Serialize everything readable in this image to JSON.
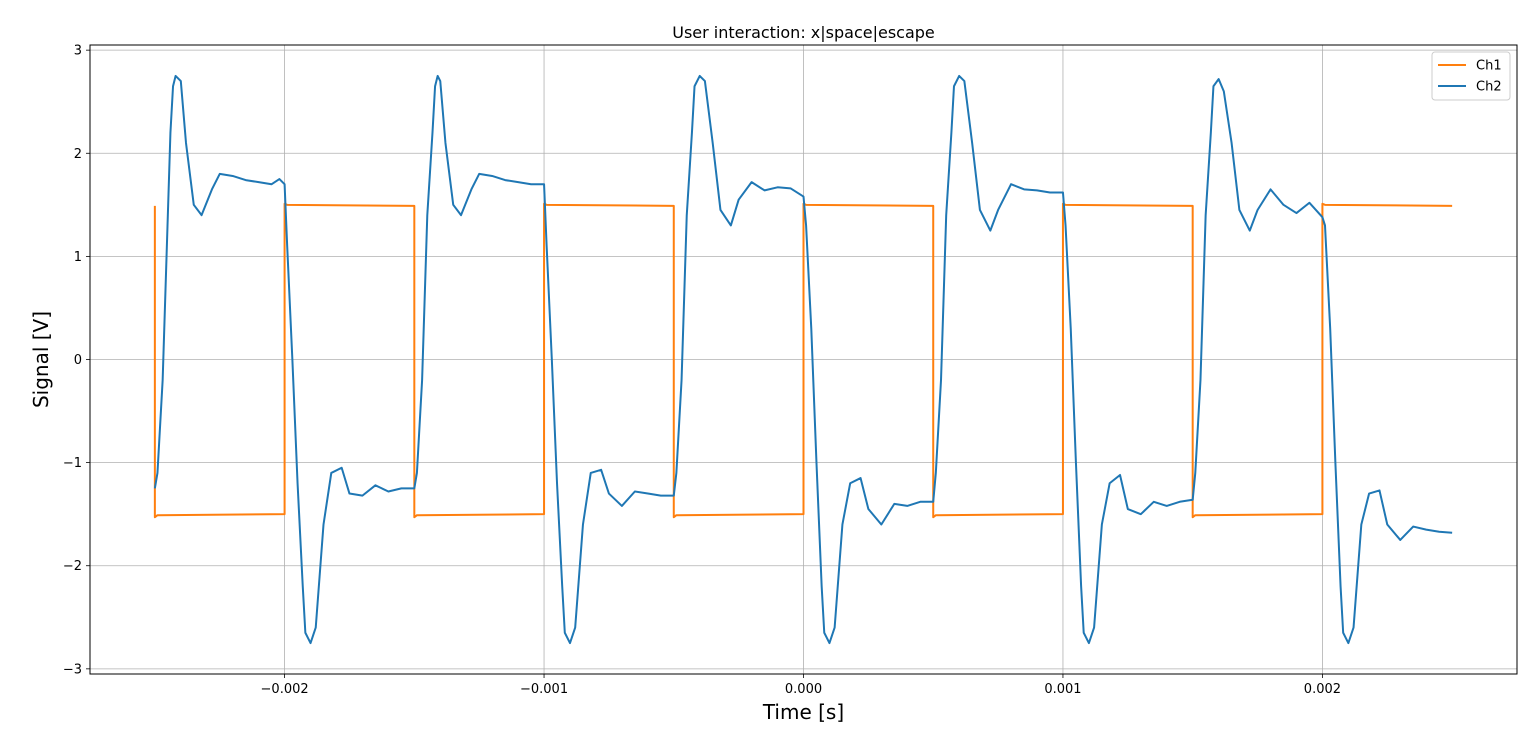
{
  "chart_data": {
    "type": "line",
    "title": "User interaction: x|space|escape",
    "xlabel": "Time [s]",
    "ylabel": "Signal [V]",
    "xlim": [
      -0.00275,
      0.00275
    ],
    "ylim": [
      -3.05,
      3.05
    ],
    "xticks": [
      -0.002,
      -0.001,
      0.0,
      0.001,
      0.002
    ],
    "xtick_labels": [
      "−0.002",
      "−0.001",
      "0.000",
      "0.001",
      "0.002"
    ],
    "yticks": [
      -3,
      -2,
      -1,
      0,
      1,
      2,
      3
    ],
    "ytick_labels": [
      "−3",
      "−2",
      "−1",
      "0",
      "1",
      "2",
      "3"
    ],
    "grid": true,
    "legend_position": "top-right",
    "square_wave": {
      "amplitude": 1.5,
      "period_s": 0.001,
      "t_start": -0.0025,
      "t_end": 0.0025,
      "edges_s": [
        -0.002,
        -0.0015,
        -0.001,
        -0.0005,
        0.0,
        0.0005,
        0.001,
        0.0015,
        0.002
      ],
      "initial_level": 1.5
    },
    "series": [
      {
        "name": "Ch1",
        "color": "#ff7f0e",
        "description": "square wave ±1.5 V",
        "x": [
          -0.0025,
          -0.0025,
          -0.00249,
          -0.002,
          -0.002,
          -0.00199,
          -0.0015,
          -0.0015,
          -0.00149,
          -0.001,
          -0.001,
          -0.00099,
          -0.0005,
          -0.0005,
          -0.00049,
          0.0,
          0.0,
          1e-05,
          0.0005,
          0.0005,
          0.00051,
          0.001,
          0.001,
          0.00101,
          0.0015,
          0.0015,
          0.00151,
          0.002,
          0.002,
          0.00201,
          0.0025
        ],
        "y": [
          1.49,
          -1.53,
          -1.51,
          -1.5,
          1.51,
          1.5,
          1.49,
          -1.53,
          -1.51,
          -1.5,
          1.51,
          1.5,
          1.49,
          -1.53,
          -1.51,
          -1.5,
          1.51,
          1.5,
          1.49,
          -1.53,
          -1.51,
          -1.5,
          1.51,
          1.5,
          1.49,
          -1.53,
          -1.51,
          -1.5,
          1.51,
          1.5,
          1.49
        ]
      },
      {
        "name": "Ch2",
        "color": "#1f77b4",
        "description": "ringing response to square-wave edges",
        "x": [
          -0.0025,
          -0.00249,
          -0.00247,
          -0.00245,
          -0.00244,
          -0.00243,
          -0.00242,
          -0.0024,
          -0.00238,
          -0.00235,
          -0.00232,
          -0.00228,
          -0.00225,
          -0.0022,
          -0.00215,
          -0.0021,
          -0.00205,
          -0.00202,
          -0.002,
          -0.00199,
          -0.00197,
          -0.00195,
          -0.00193,
          -0.00192,
          -0.0019,
          -0.00188,
          -0.00185,
          -0.00182,
          -0.00178,
          -0.00175,
          -0.0017,
          -0.00165,
          -0.0016,
          -0.00155,
          -0.0015,
          -0.00149,
          -0.00147,
          -0.00145,
          -0.00143,
          -0.00142,
          -0.00141,
          -0.0014,
          -0.00138,
          -0.00135,
          -0.00132,
          -0.00128,
          -0.00125,
          -0.0012,
          -0.00115,
          -0.0011,
          -0.00105,
          -0.001,
          -0.00099,
          -0.00097,
          -0.00095,
          -0.00093,
          -0.00092,
          -0.0009,
          -0.00088,
          -0.00085,
          -0.00082,
          -0.00078,
          -0.00075,
          -0.0007,
          -0.00065,
          -0.0006,
          -0.00055,
          -0.0005,
          -0.00049,
          -0.00047,
          -0.00045,
          -0.00043,
          -0.00042,
          -0.0004,
          -0.00038,
          -0.00035,
          -0.00032,
          -0.00028,
          -0.00025,
          -0.0002,
          -0.00015,
          -0.0001,
          -5e-05,
          0.0,
          1e-05,
          3e-05,
          5e-05,
          7e-05,
          8e-05,
          0.0001,
          0.00012,
          0.00015,
          0.00018,
          0.00022,
          0.00025,
          0.0003,
          0.00035,
          0.0004,
          0.00045,
          0.0005,
          0.00051,
          0.00053,
          0.00055,
          0.00057,
          0.00058,
          0.0006,
          0.00062,
          0.00065,
          0.00068,
          0.00072,
          0.00075,
          0.0008,
          0.00085,
          0.0009,
          0.00095,
          0.001,
          0.00101,
          0.00103,
          0.00105,
          0.00107,
          0.00108,
          0.0011,
          0.00112,
          0.00115,
          0.00118,
          0.00122,
          0.00125,
          0.0013,
          0.00135,
          0.0014,
          0.00145,
          0.0015,
          0.00151,
          0.00153,
          0.00155,
          0.00157,
          0.00158,
          0.0016,
          0.00162,
          0.00165,
          0.00168,
          0.00172,
          0.00175,
          0.0018,
          0.00185,
          0.0019,
          0.00195,
          0.002,
          0.00201,
          0.00203,
          0.00205,
          0.00207,
          0.00208,
          0.0021,
          0.00212,
          0.00215,
          0.00218,
          0.00222,
          0.00225,
          0.0023,
          0.00235,
          0.0024,
          0.00245,
          0.0025
        ],
        "y": [
          -1.25,
          -1.1,
          -0.2,
          1.4,
          2.2,
          2.65,
          2.75,
          2.7,
          2.1,
          1.5,
          1.4,
          1.65,
          1.8,
          1.78,
          1.74,
          1.72,
          1.7,
          1.75,
          1.7,
          1.1,
          0.0,
          -1.2,
          -2.2,
          -2.65,
          -2.75,
          -2.6,
          -1.6,
          -1.1,
          -1.05,
          -1.3,
          -1.32,
          -1.22,
          -1.28,
          -1.25,
          -1.25,
          -1.1,
          -0.2,
          1.4,
          2.2,
          2.65,
          2.75,
          2.7,
          2.1,
          1.5,
          1.4,
          1.65,
          1.8,
          1.78,
          1.74,
          1.72,
          1.7,
          1.7,
          1.1,
          0.0,
          -1.2,
          -2.2,
          -2.65,
          -2.75,
          -2.6,
          -1.6,
          -1.1,
          -1.07,
          -1.3,
          -1.42,
          -1.28,
          -1.3,
          -1.32,
          -1.32,
          -1.1,
          -0.2,
          1.4,
          2.2,
          2.65,
          2.75,
          2.7,
          2.1,
          1.45,
          1.3,
          1.55,
          1.72,
          1.64,
          1.67,
          1.66,
          1.58,
          1.3,
          0.3,
          -1.0,
          -2.2,
          -2.65,
          -2.75,
          -2.6,
          -1.6,
          -1.2,
          -1.15,
          -1.45,
          -1.6,
          -1.4,
          -1.42,
          -1.38,
          -1.38,
          -1.1,
          -0.2,
          1.4,
          2.2,
          2.65,
          2.75,
          2.7,
          2.1,
          1.45,
          1.25,
          1.45,
          1.7,
          1.65,
          1.64,
          1.62,
          1.62,
          1.3,
          0.3,
          -1.0,
          -2.2,
          -2.65,
          -2.75,
          -2.6,
          -1.6,
          -1.2,
          -1.12,
          -1.45,
          -1.5,
          -1.38,
          -1.42,
          -1.38,
          -1.36,
          -1.1,
          -0.2,
          1.4,
          2.2,
          2.65,
          2.72,
          2.6,
          2.1,
          1.45,
          1.25,
          1.45,
          1.65,
          1.5,
          1.42,
          1.52,
          1.38,
          1.3,
          0.3,
          -1.0,
          -2.2,
          -2.65,
          -2.75,
          -2.6,
          -1.6,
          -1.3,
          -1.27,
          -1.6,
          -1.75,
          -1.62,
          -1.65,
          -1.67,
          -1.68
        ]
      }
    ]
  }
}
